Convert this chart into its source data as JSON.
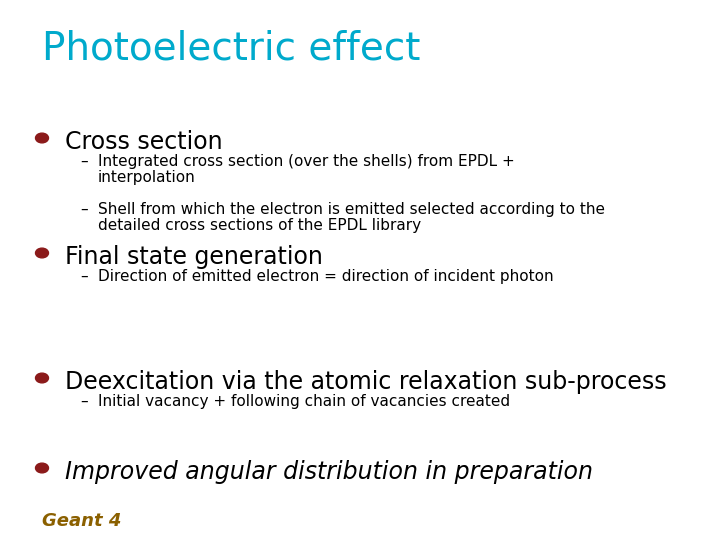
{
  "title": "Photoelectric effect",
  "title_color": "#00AACC",
  "title_fontsize": 28,
  "background_color": "#FFFFFF",
  "bullet_color": "#8B1A1A",
  "bullet_items": [
    {
      "text": "Cross section",
      "fontsize": 17,
      "bold": false,
      "italic": false,
      "color": "#000000",
      "sub_items": [
        [
          "Integrated cross section (over the shells) from EPDL +",
          "interpolation"
        ],
        [
          "Shell from which the electron is emitted selected according to the",
          "detailed cross sections of the EPDL library"
        ]
      ]
    },
    {
      "text": "Final state generation",
      "fontsize": 17,
      "bold": false,
      "italic": false,
      "color": "#000000",
      "sub_items": [
        [
          "Direction of emitted electron = direction of incident photon"
        ]
      ]
    },
    {
      "text": "Deexcitation via the atomic relaxation sub-process",
      "fontsize": 17,
      "bold": false,
      "italic": false,
      "color": "#000000",
      "sub_items": [
        [
          "Initial vacancy + following chain of vacancies created"
        ]
      ]
    },
    {
      "text": "Improved angular distribution in preparation",
      "fontsize": 17,
      "bold": false,
      "italic": true,
      "color": "#000000",
      "sub_items": []
    }
  ],
  "geant4_text": "Geant 4",
  "geant4_color": "#8B6000",
  "geant4_fontsize": 13,
  "sub_fontsize": 11,
  "sub_color": "#000000"
}
